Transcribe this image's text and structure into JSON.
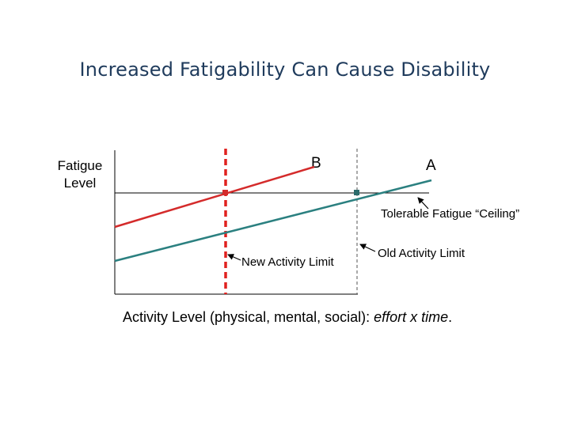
{
  "title": "Increased Fatigability Can Cause Disability",
  "y_axis_label": "Fatigue Level",
  "line_labels": {
    "b": "B",
    "a": "A"
  },
  "annotations": {
    "ceiling": "Tolerable Fatigue “Ceiling”",
    "old_limit": "Old Activity Limit",
    "new_limit": "New Activity Limit"
  },
  "x_axis_label": {
    "main": "Activity Level (physical, mental, social): ",
    "emphasis": "effort x time",
    "end": "."
  },
  "colors": {
    "title": "#1f3b5c",
    "line_b": "#d42b2b",
    "line_a": "#2b8080",
    "new_limit_line": "#e0211f",
    "axes": "#000000"
  }
}
